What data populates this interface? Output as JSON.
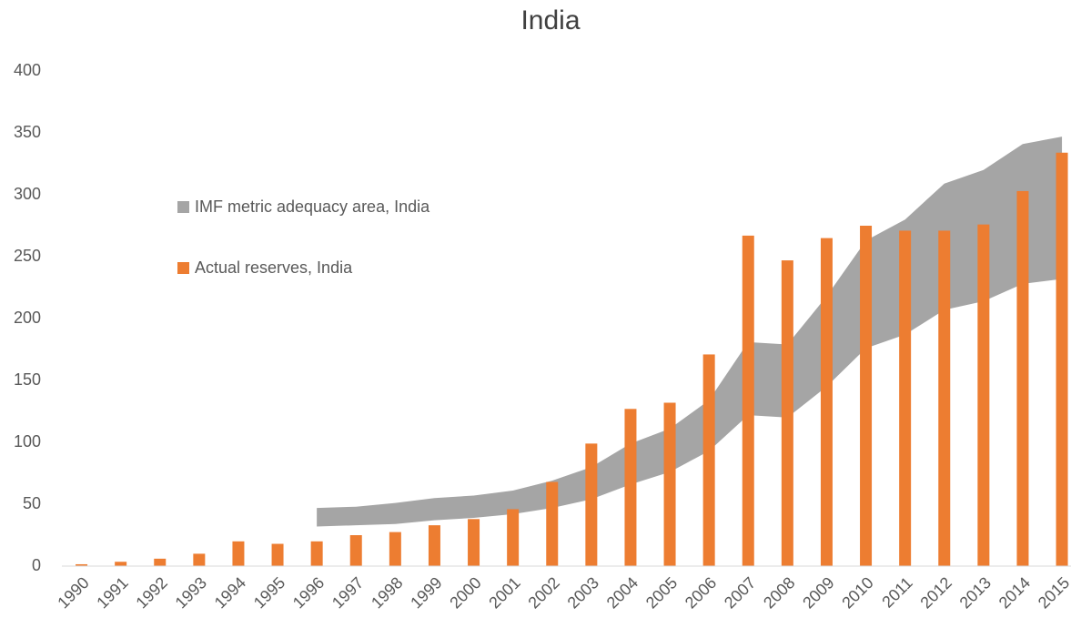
{
  "chart_data": {
    "type": "bar",
    "title": "India",
    "categories": [
      "1990",
      "1991",
      "1992",
      "1993",
      "1994",
      "1995",
      "1996",
      "1997",
      "1998",
      "1999",
      "2000",
      "2001",
      "2002",
      "2003",
      "2004",
      "2005",
      "2006",
      "2007",
      "2008",
      "2009",
      "2010",
      "2011",
      "2012",
      "2013",
      "2014",
      "2015"
    ],
    "series": [
      {
        "name": "IMF metric adequacy area, India",
        "type": "band",
        "color": "#a5a5a5",
        "lower": [
          null,
          null,
          null,
          null,
          null,
          null,
          32,
          33,
          34,
          37,
          39,
          42,
          47,
          54,
          66,
          76,
          93,
          122,
          120,
          145,
          176,
          187,
          207,
          214,
          228,
          232
        ],
        "upper": [
          null,
          null,
          null,
          null,
          null,
          null,
          47,
          48,
          51,
          55,
          57,
          61,
          69,
          80,
          99,
          111,
          134,
          181,
          179,
          218,
          263,
          280,
          309,
          320,
          341,
          347
        ]
      },
      {
        "name": "Actual reserves, India",
        "type": "bar",
        "color": "#ed7d31",
        "values": [
          1.5,
          3.5,
          6,
          10,
          20,
          18,
          20,
          25,
          27.5,
          33,
          38,
          46,
          68,
          99,
          127,
          132,
          171,
          267,
          247,
          265,
          275,
          271,
          271,
          276,
          303,
          334
        ]
      }
    ],
    "ylim": [
      0,
      400
    ],
    "yticks": [
      0,
      50,
      100,
      150,
      200,
      250,
      300,
      350,
      400
    ],
    "grid": false
  }
}
